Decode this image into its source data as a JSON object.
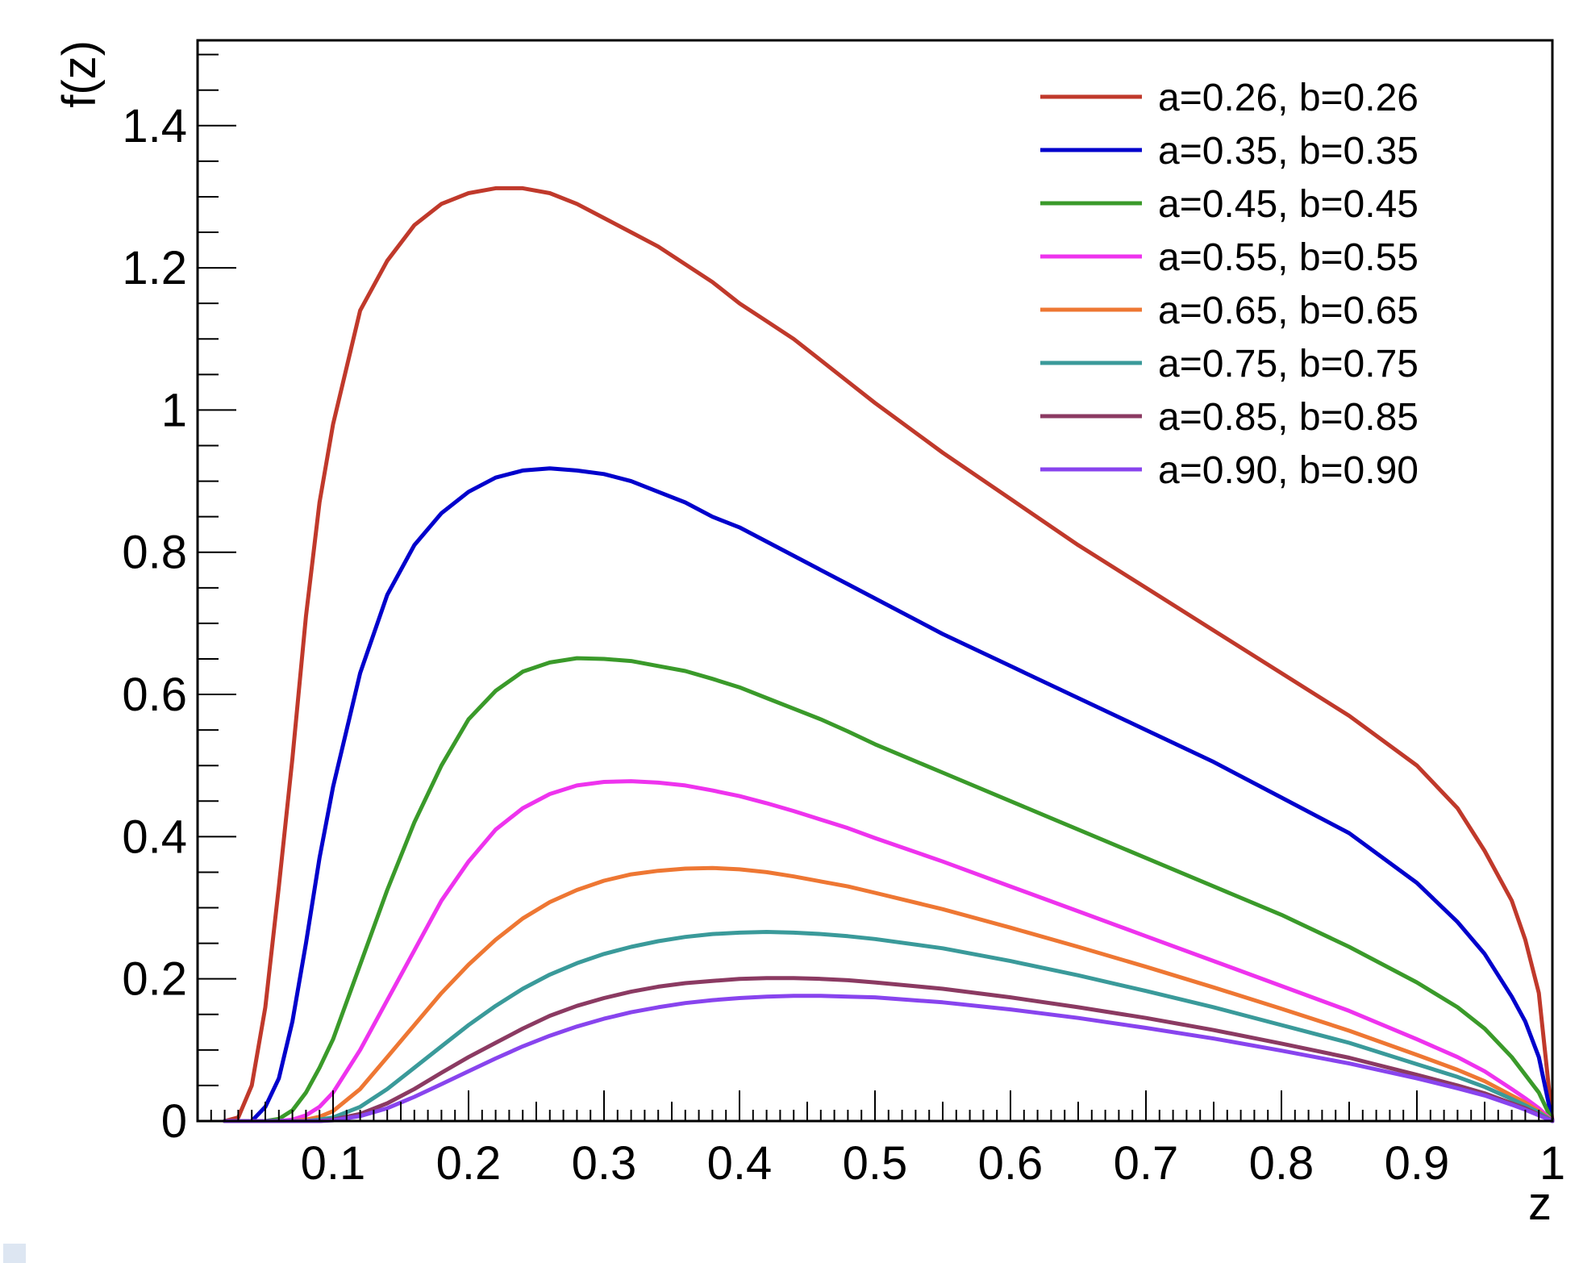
{
  "chart_data": {
    "type": "line",
    "title": "",
    "xlabel": "z",
    "ylabel": "f(z)",
    "xlim": [
      0,
      1
    ],
    "ylim": [
      0,
      1.52
    ],
    "x_ticks": [
      0.1,
      0.2,
      0.3,
      0.4,
      0.5,
      0.6,
      0.7,
      0.8,
      0.9,
      1
    ],
    "x_tick_labels": [
      "0.1",
      "0.2",
      "0.3",
      "0.4",
      "0.5",
      "0.6",
      "0.7",
      "0.8",
      "0.9",
      "1"
    ],
    "y_ticks": [
      0,
      0.2,
      0.4,
      0.6,
      0.8,
      1,
      1.2,
      1.4
    ],
    "y_tick_labels": [
      "0",
      "0.2",
      "0.4",
      "0.6",
      "0.8",
      "1",
      "1.2",
      "1.4"
    ],
    "grid": false,
    "legend_position": "top-right",
    "x": [
      0.02,
      0.03,
      0.04,
      0.05,
      0.06,
      0.07,
      0.08,
      0.09,
      0.1,
      0.12,
      0.14,
      0.16,
      0.18,
      0.2,
      0.22,
      0.24,
      0.26,
      0.28,
      0.3,
      0.32,
      0.34,
      0.36,
      0.38,
      0.4,
      0.42,
      0.44,
      0.46,
      0.48,
      0.5,
      0.55,
      0.6,
      0.65,
      0.7,
      0.75,
      0.8,
      0.85,
      0.9,
      0.93,
      0.95,
      0.97,
      0.98,
      0.99,
      1.0
    ],
    "series": [
      {
        "name": "a=0.26, b=0.26",
        "color": "#c0392b",
        "values": [
          0.0,
          0.005,
          0.05,
          0.16,
          0.33,
          0.51,
          0.71,
          0.87,
          0.98,
          1.14,
          1.21,
          1.26,
          1.29,
          1.305,
          1.312,
          1.312,
          1.305,
          1.29,
          1.27,
          1.25,
          1.23,
          1.205,
          1.18,
          1.15,
          1.125,
          1.1,
          1.07,
          1.04,
          1.01,
          0.94,
          0.875,
          0.81,
          0.75,
          0.69,
          0.63,
          0.57,
          0.5,
          0.44,
          0.38,
          0.31,
          0.255,
          0.18,
          0.0
        ]
      },
      {
        "name": "a=0.35, b=0.35",
        "color": "#0000cc",
        "values": [
          0.0,
          0.0,
          0.0,
          0.02,
          0.06,
          0.14,
          0.25,
          0.37,
          0.47,
          0.63,
          0.74,
          0.81,
          0.855,
          0.885,
          0.905,
          0.915,
          0.918,
          0.915,
          0.91,
          0.9,
          0.885,
          0.87,
          0.85,
          0.835,
          0.815,
          0.795,
          0.775,
          0.755,
          0.735,
          0.685,
          0.64,
          0.595,
          0.55,
          0.505,
          0.455,
          0.405,
          0.335,
          0.28,
          0.235,
          0.175,
          0.14,
          0.09,
          0.0
        ]
      },
      {
        "name": "a=0.45, b=0.45",
        "color": "#3a9a2a",
        "values": [
          0.0,
          0.0,
          0.0,
          0.0,
          0.003,
          0.015,
          0.04,
          0.075,
          0.115,
          0.22,
          0.325,
          0.42,
          0.5,
          0.565,
          0.605,
          0.632,
          0.645,
          0.651,
          0.65,
          0.647,
          0.64,
          0.633,
          0.622,
          0.61,
          0.595,
          0.58,
          0.565,
          0.548,
          0.53,
          0.49,
          0.45,
          0.41,
          0.37,
          0.33,
          0.29,
          0.245,
          0.195,
          0.16,
          0.13,
          0.09,
          0.065,
          0.04,
          0.0
        ]
      },
      {
        "name": "a=0.55, b=0.55",
        "color": "#ee33ee",
        "values": [
          0.0,
          0.0,
          0.0,
          0.0,
          0.0,
          0.002,
          0.008,
          0.02,
          0.04,
          0.1,
          0.17,
          0.24,
          0.31,
          0.365,
          0.41,
          0.44,
          0.46,
          0.472,
          0.477,
          0.478,
          0.476,
          0.472,
          0.465,
          0.457,
          0.447,
          0.436,
          0.424,
          0.412,
          0.398,
          0.365,
          0.33,
          0.295,
          0.26,
          0.225,
          0.19,
          0.155,
          0.115,
          0.09,
          0.07,
          0.045,
          0.032,
          0.018,
          0.0
        ]
      },
      {
        "name": "a=0.65, b=0.65",
        "color": "#ee7733",
        "values": [
          0.0,
          0.0,
          0.0,
          0.0,
          0.0,
          0.0,
          0.002,
          0.006,
          0.014,
          0.045,
          0.09,
          0.135,
          0.18,
          0.22,
          0.255,
          0.285,
          0.308,
          0.325,
          0.338,
          0.347,
          0.352,
          0.355,
          0.356,
          0.354,
          0.35,
          0.344,
          0.337,
          0.33,
          0.321,
          0.298,
          0.272,
          0.245,
          0.217,
          0.188,
          0.158,
          0.127,
          0.093,
          0.072,
          0.056,
          0.036,
          0.026,
          0.014,
          0.0
        ]
      },
      {
        "name": "a=0.75, b=0.75",
        "color": "#3a9a9a",
        "values": [
          0.0,
          0.0,
          0.0,
          0.0,
          0.0,
          0.0,
          0.0,
          0.002,
          0.005,
          0.02,
          0.045,
          0.075,
          0.105,
          0.135,
          0.162,
          0.186,
          0.206,
          0.222,
          0.235,
          0.245,
          0.253,
          0.259,
          0.263,
          0.265,
          0.266,
          0.265,
          0.263,
          0.26,
          0.256,
          0.243,
          0.225,
          0.205,
          0.183,
          0.16,
          0.135,
          0.11,
          0.08,
          0.062,
          0.048,
          0.031,
          0.022,
          0.012,
          0.0
        ]
      },
      {
        "name": "a=0.85, b=0.85",
        "color": "#8b3a62",
        "values": [
          0.0,
          0.0,
          0.0,
          0.0,
          0.0,
          0.0,
          0.0,
          0.0,
          0.002,
          0.01,
          0.025,
          0.045,
          0.068,
          0.09,
          0.11,
          0.13,
          0.148,
          0.162,
          0.173,
          0.182,
          0.189,
          0.194,
          0.197,
          0.2,
          0.201,
          0.201,
          0.2,
          0.198,
          0.195,
          0.186,
          0.174,
          0.16,
          0.145,
          0.128,
          0.109,
          0.089,
          0.065,
          0.05,
          0.039,
          0.025,
          0.018,
          0.009,
          0.0
        ]
      },
      {
        "name": "a=0.90, b=0.90",
        "color": "#8844ee",
        "values": [
          0.0,
          0.0,
          0.0,
          0.0,
          0.0,
          0.0,
          0.0,
          0.0,
          0.001,
          0.007,
          0.018,
          0.034,
          0.052,
          0.07,
          0.088,
          0.105,
          0.12,
          0.133,
          0.144,
          0.153,
          0.16,
          0.166,
          0.17,
          0.173,
          0.175,
          0.176,
          0.176,
          0.175,
          0.174,
          0.167,
          0.157,
          0.145,
          0.131,
          0.116,
          0.099,
          0.081,
          0.06,
          0.046,
          0.036,
          0.023,
          0.016,
          0.008,
          0.0
        ]
      }
    ]
  }
}
